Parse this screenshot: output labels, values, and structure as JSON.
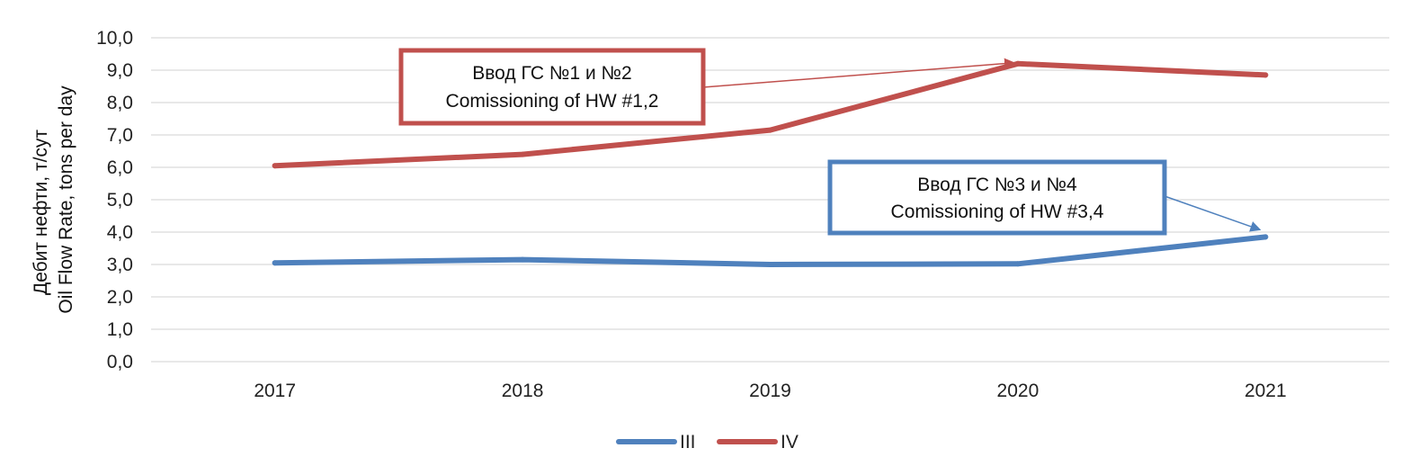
{
  "chart_data": {
    "type": "line",
    "categories": [
      "2017",
      "2018",
      "2019",
      "2020",
      "2021"
    ],
    "ylim": [
      0,
      10
    ],
    "yticks": [
      "0,0",
      "1,0",
      "2,0",
      "3,0",
      "4,0",
      "5,0",
      "6,0",
      "7,0",
      "8,0",
      "9,0",
      "10,0"
    ],
    "ylabel_line1": "Дебит нефти, т/сут",
    "ylabel_line2": "Oil Flow Rate, tons per day",
    "grid": true,
    "legend_position": "bottom",
    "series": [
      {
        "name": "III",
        "color": "#4f81bd",
        "values": [
          3.05,
          3.15,
          3.0,
          3.02,
          3.85
        ]
      },
      {
        "name": "IV",
        "color": "#c0504d",
        "values": [
          6.05,
          6.4,
          7.15,
          9.2,
          8.85
        ]
      }
    ],
    "annotations": [
      {
        "line1": "Ввод ГС №1 и №2",
        "line2": "Comissioning of HW #1,2",
        "color": "#c0504d",
        "target_category": "2020",
        "target_value": 9.2
      },
      {
        "line1": "Ввод ГС №3 и №4",
        "line2": "Comissioning of HW #3,4",
        "color": "#4f81bd",
        "target_category": "2021",
        "target_value": 3.85
      }
    ]
  }
}
